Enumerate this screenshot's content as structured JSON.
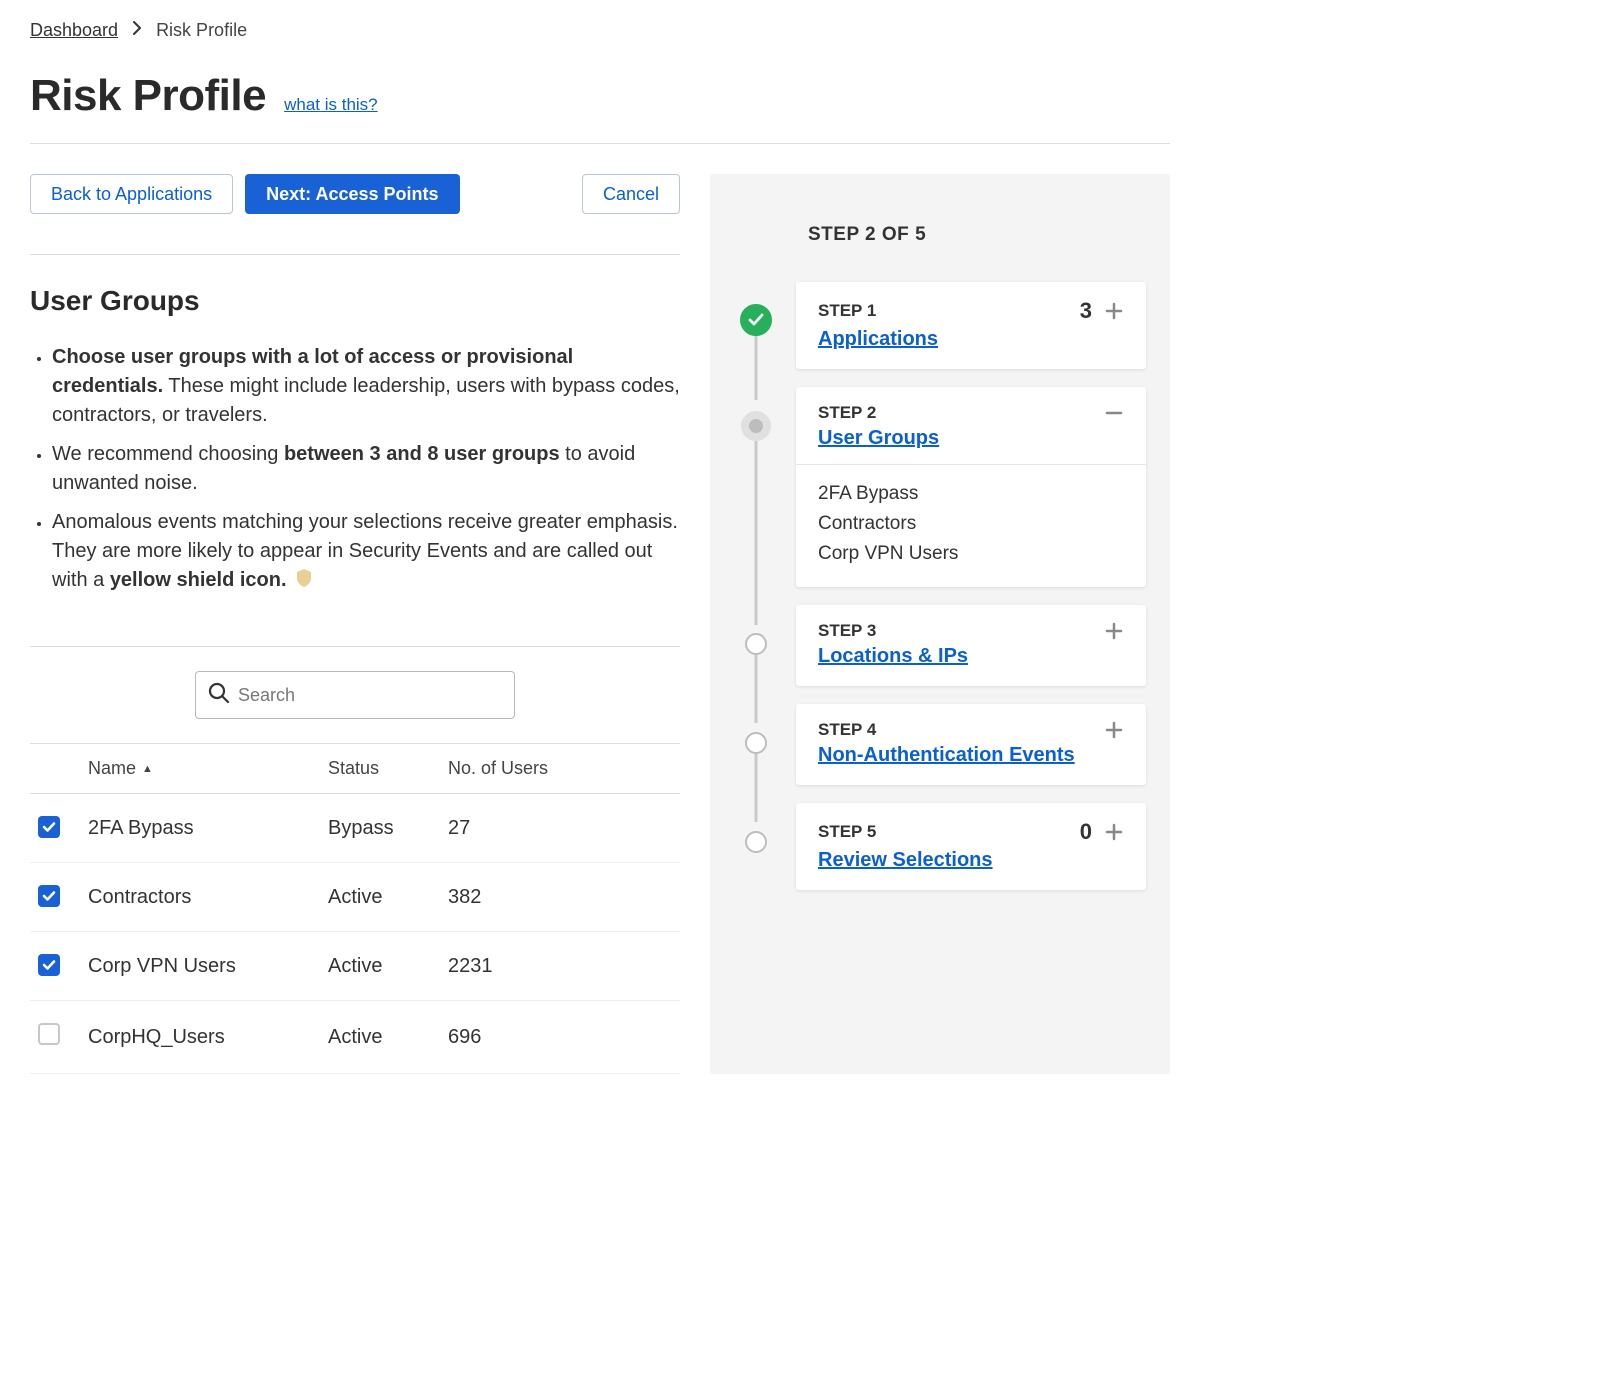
{
  "colors": {
    "primary": "#1862d6",
    "link": "#0a5fd1",
    "success": "#27b05b",
    "border": "#dddddd",
    "sidebar_bg": "#f4f4f4",
    "text": "#333333",
    "muted_node": "#bdbdbd",
    "shield": "#e7d095"
  },
  "breadcrumb": {
    "root": "Dashboard",
    "current": "Risk Profile"
  },
  "title": "Risk Profile",
  "help_link": "what is this?",
  "buttons": {
    "back": "Back to Applications",
    "next": "Next: Access Points",
    "cancel": "Cancel"
  },
  "section": {
    "title": "User Groups",
    "bullets": [
      {
        "bold_lead": "Choose user groups with a lot of access or provisional credentials.",
        "rest": " These might include leadership, users with bypass codes, contractors, or travelers."
      },
      {
        "pre": "We recommend choosing ",
        "bold_mid": "between 3 and 8 user groups",
        "post": " to avoid unwanted noise."
      },
      {
        "pre": "Anomalous events matching your selections receive greater emphasis. They are more likely to appear in Security Events and are called out with a ",
        "bold_mid": "yellow shield icon.",
        "post": ""
      }
    ]
  },
  "search_placeholder": "Search",
  "table": {
    "columns": {
      "name": "Name",
      "status": "Status",
      "users": "No. of Users"
    },
    "sort_column": "name",
    "sort_dir": "asc",
    "rows": [
      {
        "checked": true,
        "name": "2FA Bypass",
        "status": "Bypass",
        "users": "27"
      },
      {
        "checked": true,
        "name": "Contractors",
        "status": "Active",
        "users": "382"
      },
      {
        "checked": true,
        "name": "Corp VPN Users",
        "status": "Active",
        "users": "2231"
      },
      {
        "checked": false,
        "name": "CorpHQ_Users",
        "status": "Active",
        "users": "696"
      }
    ]
  },
  "stepper": {
    "header": "STEP 2 OF 5",
    "steps": [
      {
        "label": "STEP 1",
        "title": "Applications",
        "count": "3",
        "state": "done"
      },
      {
        "label": "STEP 2",
        "title": "User Groups",
        "state": "active",
        "expanded": true,
        "items": [
          "2FA Bypass",
          "Contractors",
          "Corp VPN Users"
        ]
      },
      {
        "label": "STEP 3",
        "title": "Locations & IPs",
        "state": "pending"
      },
      {
        "label": "STEP 4",
        "title": "Non-Authentication Events",
        "state": "pending"
      },
      {
        "label": "STEP 5",
        "title": "Review Selections",
        "count": "0",
        "state": "pending"
      }
    ]
  }
}
